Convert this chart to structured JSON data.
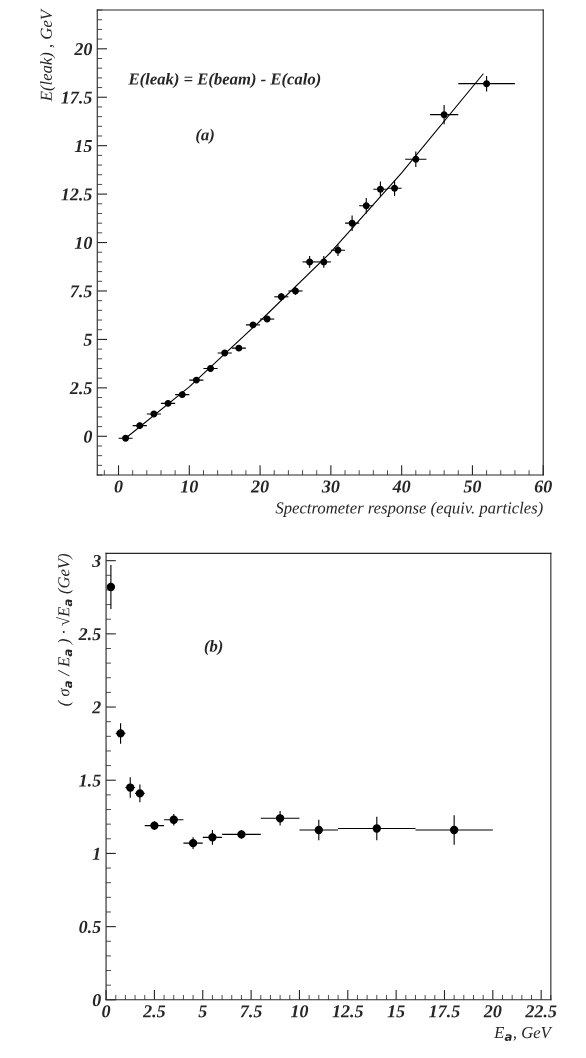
{
  "chart_data": [
    {
      "type": "scatter",
      "xlabel": "Spectrometer response (equiv. particles)",
      "ylabel": "E(leak) , GeV",
      "annotations": [
        "E(leak) = E(beam) - E(calo)",
        "(a)"
      ],
      "xlim": [
        -3,
        60
      ],
      "xticks": [
        0,
        10,
        20,
        30,
        40,
        50,
        60
      ],
      "ylim": [
        -2,
        22
      ],
      "yticks": [
        0,
        2.5,
        5,
        7.5,
        10,
        12.5,
        15,
        17.5,
        20
      ],
      "grid": false,
      "legend": false,
      "series": [
        {
          "marker": "circle",
          "color": "#000000",
          "x": [
            1,
            3,
            5,
            7,
            9,
            11,
            13,
            15,
            17,
            19,
            21,
            23,
            25,
            27,
            29,
            31,
            33,
            35,
            37,
            39,
            42,
            46,
            52
          ],
          "values": [
            -0.1,
            0.55,
            1.15,
            1.7,
            2.15,
            2.9,
            3.5,
            4.3,
            4.55,
            5.75,
            6.05,
            7.2,
            7.5,
            9.0,
            9.0,
            9.6,
            11.0,
            11.9,
            12.75,
            12.8,
            14.3,
            16.6,
            18.2
          ],
          "errors": [
            0.15,
            0.15,
            0.15,
            0.15,
            0.15,
            0.15,
            0.15,
            0.15,
            0.15,
            0.15,
            0.15,
            0.2,
            0.2,
            0.3,
            0.3,
            0.3,
            0.4,
            0.4,
            0.4,
            0.4,
            0.4,
            0.5,
            0.4
          ],
          "xerrors": [
            1,
            1,
            1,
            1,
            1,
            1,
            1,
            1,
            1,
            1,
            1,
            1,
            1,
            1,
            1,
            1,
            1,
            1,
            1,
            1,
            1.5,
            2,
            4
          ]
        },
        {
          "type": "line",
          "color": "#000000",
          "x": [
            1,
            10,
            20,
            30,
            40,
            51.5
          ],
          "values": [
            -0.1,
            2.55,
            5.95,
            9.5,
            13.6,
            18.7
          ]
        }
      ]
    },
    {
      "type": "scatter",
      "xlabel": "E$_{a}$, GeV",
      "ylabel": "( σ$_{a}$ / E$_{a}$ ) · √E$_{a}$ (GeV)",
      "annotations": [
        "(b)"
      ],
      "xlim": [
        0,
        23
      ],
      "xticks": [
        0,
        2.5,
        5,
        7.5,
        10,
        12.5,
        15,
        17.5,
        20,
        22.5
      ],
      "ylim": [
        0,
        3.05
      ],
      "yticks": [
        0,
        0.5,
        1,
        1.5,
        2,
        2.5,
        3
      ],
      "grid": false,
      "legend": false,
      "series": [
        {
          "marker": "circle",
          "color": "#000000",
          "x": [
            0.25,
            0.75,
            1.25,
            1.75,
            2.5,
            3.5,
            4.5,
            5.5,
            7,
            9,
            11,
            14,
            18
          ],
          "values": [
            2.82,
            1.82,
            1.45,
            1.41,
            1.19,
            1.23,
            1.07,
            1.11,
            1.13,
            1.24,
            1.16,
            1.17,
            1.16
          ],
          "errors": [
            0.15,
            0.07,
            0.07,
            0.06,
            0.03,
            0.04,
            0.04,
            0.05,
            0.03,
            0.05,
            0.07,
            0.08,
            0.1
          ],
          "xerrors": [
            null,
            0.25,
            0.25,
            0.25,
            0.5,
            0.5,
            0.5,
            0.5,
            1,
            1,
            1,
            2,
            2
          ]
        }
      ]
    }
  ]
}
